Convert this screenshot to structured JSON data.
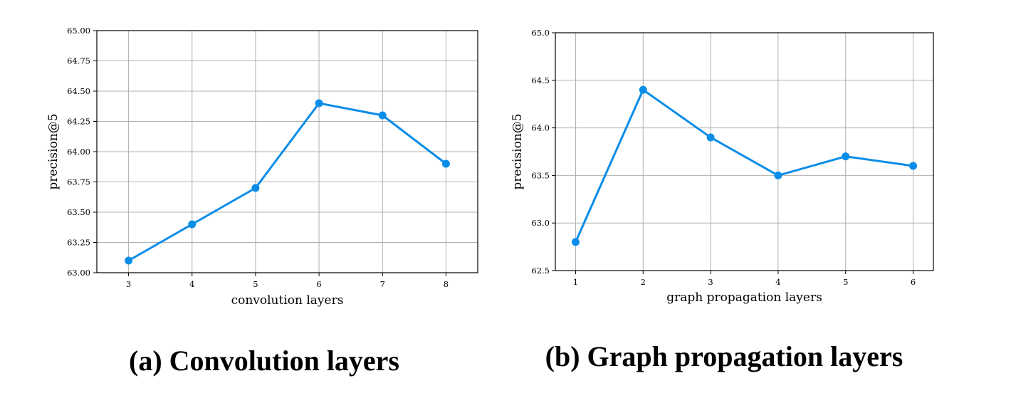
{
  "chart_data": [
    {
      "type": "line",
      "caption": "(a) Convolution layers",
      "xlabel": "convolution layers",
      "ylabel": "precision@5",
      "x": [
        3,
        4,
        5,
        6,
        7,
        8
      ],
      "xticks": [
        "3",
        "4",
        "5",
        "6",
        "7",
        "8"
      ],
      "ylim": [
        63.0,
        65.0
      ],
      "yticks": [
        "63.00",
        "63.25",
        "63.50",
        "63.75",
        "64.00",
        "64.25",
        "64.50",
        "64.75",
        "65.00"
      ],
      "series": [
        {
          "values": [
            63.1,
            63.4,
            63.7,
            64.4,
            64.3,
            63.9
          ]
        }
      ],
      "grid": true,
      "color": "#0a8de8"
    },
    {
      "type": "line",
      "caption": "(b) Graph propagation layers",
      "xlabel": "graph propagation layers",
      "ylabel": "precision@5",
      "x": [
        1,
        2,
        3,
        4,
        5,
        6
      ],
      "xticks": [
        "1",
        "2",
        "3",
        "4",
        "5",
        "6"
      ],
      "ylim": [
        62.5,
        65.0
      ],
      "yticks": [
        "62.5",
        "63.0",
        "63.5",
        "64.0",
        "64.5",
        "65.0"
      ],
      "series": [
        {
          "values": [
            62.8,
            64.4,
            63.9,
            63.5,
            63.7,
            63.6
          ]
        }
      ],
      "grid": true,
      "color": "#0a8de8"
    }
  ]
}
